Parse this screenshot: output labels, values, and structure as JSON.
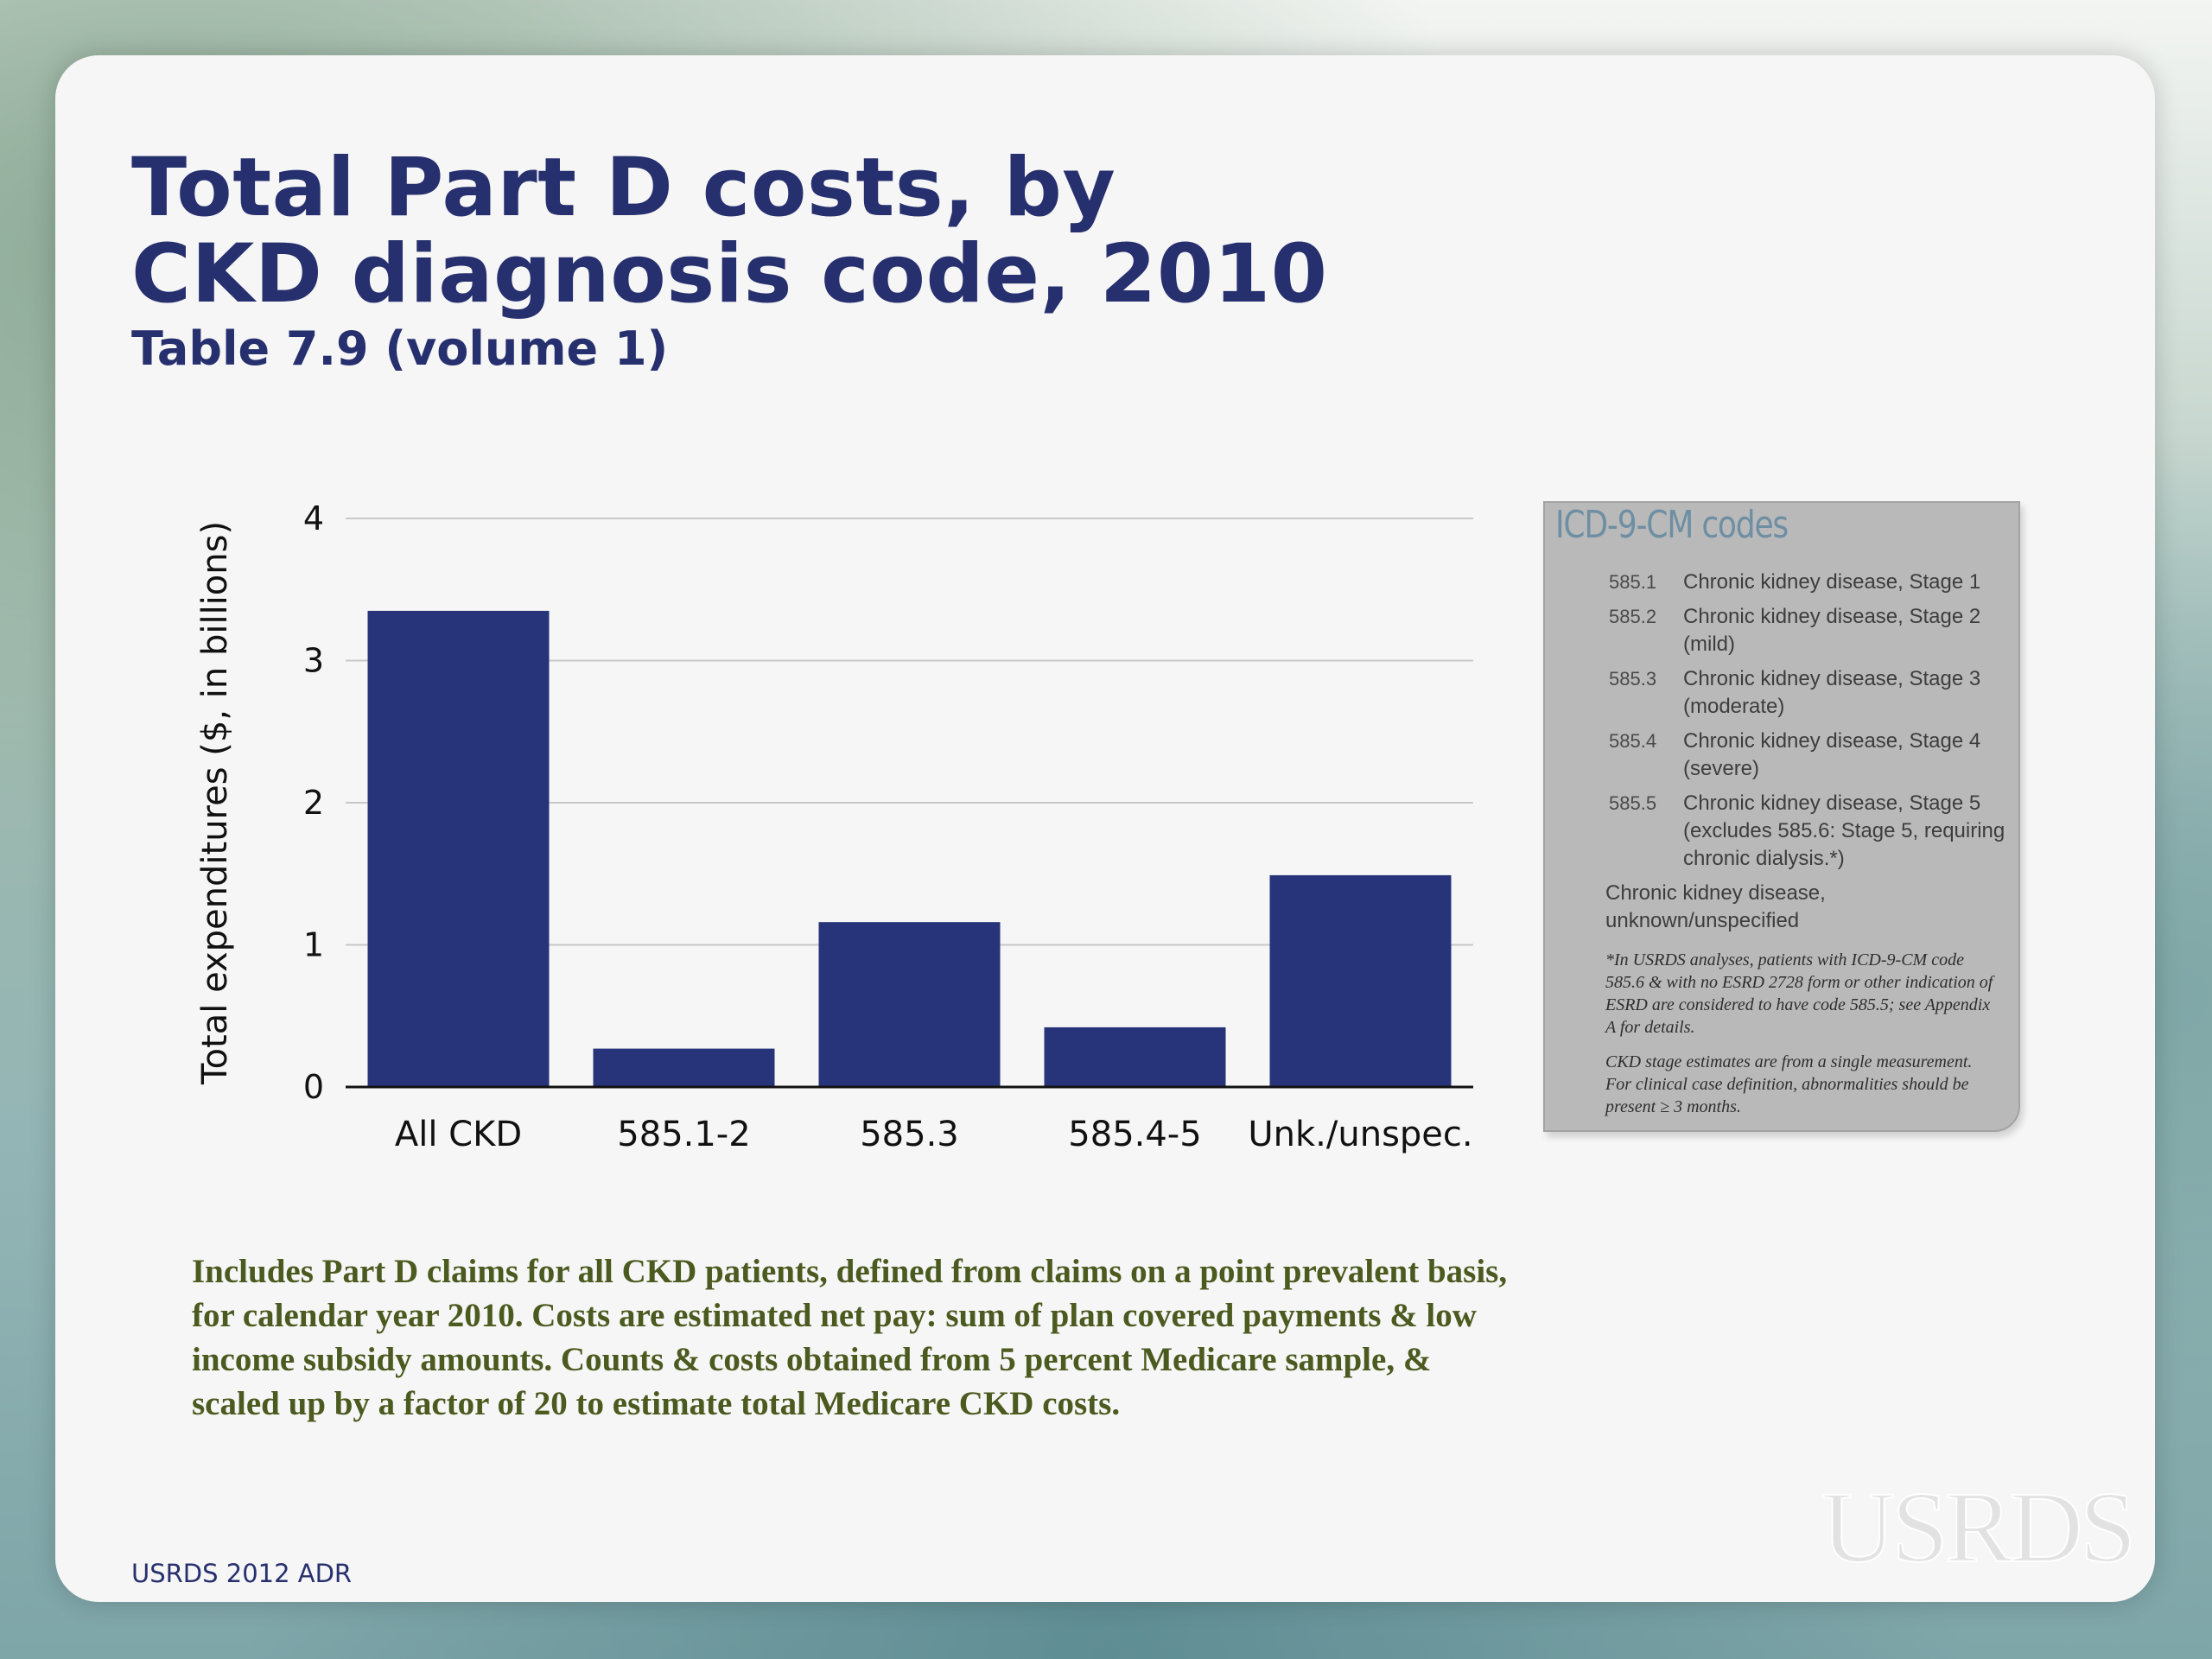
{
  "header": {
    "title_line1": "Total Part D costs, by",
    "title_line2": "CKD diagnosis code, 2010",
    "subtitle": "Table 7.9 (volume 1)"
  },
  "chart_data": {
    "type": "bar",
    "categories": [
      "All CKD",
      "585.1-2",
      "585.3",
      "585.4-5",
      "Unk./unspec."
    ],
    "values": [
      3.35,
      0.27,
      1.16,
      0.42,
      1.49
    ],
    "ylabel": "Total expenditures ($, in billions)",
    "xlabel": "",
    "ylim": [
      0,
      4
    ],
    "yticks": [
      0,
      1,
      2,
      3,
      4
    ],
    "grid": true,
    "bar_color": "#28347a"
  },
  "legend": {
    "title": "ICD-9-CM codes",
    "rows": [
      {
        "code": "585.1",
        "desc": "Chronic kidney disease, Stage 1"
      },
      {
        "code": "585.2",
        "desc": "Chronic kidney disease, Stage 2 (mild)"
      },
      {
        "code": "585.3",
        "desc": "Chronic kidney disease, Stage 3 (moderate)"
      },
      {
        "code": "585.4",
        "desc": "Chronic kidney disease, Stage 4 (severe)"
      },
      {
        "code": "585.5",
        "desc": "Chronic kidney disease, Stage 5 (excludes 585.6: Stage 5, requiring chronic dialysis.*)"
      }
    ],
    "free_text": "Chronic kidney disease, unknown/unspecified",
    "note1": "*In USRDS analyses, patients with ICD-9-CM code 585.6 & with no ESRD 2728 form or other indication of ESRD are considered to have code 585.5; see Appendix A for details.",
    "note2": "CKD stage estimates are from a single measurement. For clinical case definition, abnormalities should be present ≥ 3 months."
  },
  "footnote": " Includes Part D claims for all CKD patients, defined from claims on a point prevalent basis,\nfor calendar year 2010. Costs are estimated net pay: sum of plan covered payments & low\nincome subsidy amounts. Counts & costs obtained from 5 percent Medicare sample, &\nscaled up by a factor of 20 to estimate total Medicare CKD costs.",
  "source": "USRDS 2012 ADR",
  "logo_text": "USRDS"
}
